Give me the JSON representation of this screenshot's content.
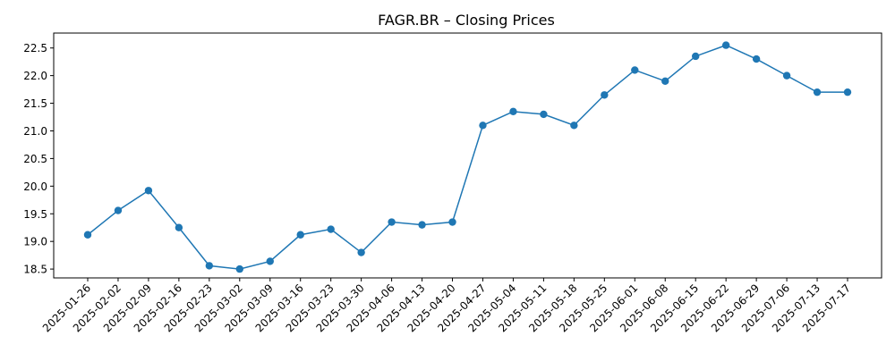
{
  "chart_data": {
    "type": "line",
    "title": "FAGR.BR – Closing Prices",
    "xlabel": "",
    "ylabel": "",
    "x": [
      "2025-01-26",
      "2025-02-02",
      "2025-02-09",
      "2025-02-16",
      "2025-02-23",
      "2025-03-02",
      "2025-03-09",
      "2025-03-16",
      "2025-03-23",
      "2025-03-30",
      "2025-04-06",
      "2025-04-13",
      "2025-04-20",
      "2025-04-27",
      "2025-05-04",
      "2025-05-11",
      "2025-05-18",
      "2025-05-25",
      "2025-06-01",
      "2025-06-08",
      "2025-06-15",
      "2025-06-22",
      "2025-06-29",
      "2025-07-06",
      "2025-07-13",
      "2025-07-17"
    ],
    "series": [
      {
        "values": [
          19.12,
          19.56,
          19.92,
          19.25,
          18.56,
          18.5,
          18.64,
          19.12,
          19.22,
          18.8,
          19.35,
          19.3,
          19.35,
          21.1,
          21.35,
          21.3,
          21.1,
          21.65,
          22.1,
          21.9,
          22.35,
          22.55,
          22.3,
          22.0,
          21.7,
          21.7
        ],
        "color": "#1f77b4"
      }
    ],
    "ylim": [
      18.34,
      22.77
    ],
    "yticks": [
      "18.5",
      "19.0",
      "19.5",
      "20.0",
      "20.5",
      "21.0",
      "21.5",
      "22.0",
      "22.5"
    ],
    "grid": false,
    "legend": "none"
  }
}
